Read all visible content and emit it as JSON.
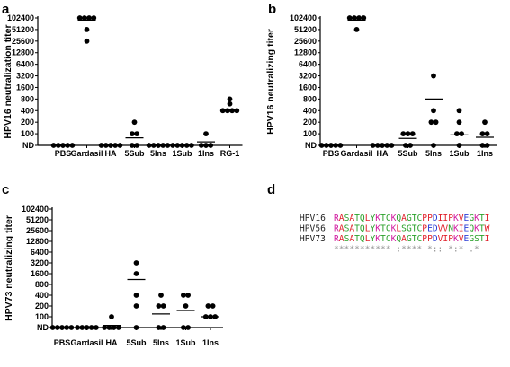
{
  "panels": {
    "a": {
      "letter": "a"
    },
    "b": {
      "letter": "b"
    },
    "c": {
      "letter": "c"
    },
    "d": {
      "letter": "d"
    }
  },
  "chart_data": [
    {
      "id": "a",
      "type": "scatter",
      "title": "",
      "ylabel": "HPV16 neutralization titer",
      "xlabel": "",
      "scale": "log2",
      "yticks": [
        "ND",
        "100",
        "200",
        "400",
        "800",
        "1600",
        "3200",
        "6400",
        "12800",
        "25600",
        "51200",
        "102400"
      ],
      "categories": [
        "PBS",
        "Gardasil",
        "HA",
        "5Sub",
        "5Ins",
        "1Sub",
        "1Ins",
        "RG-1"
      ],
      "points": [
        [
          "ND",
          "ND",
          "ND",
          "ND",
          "ND"
        ],
        [
          102400,
          102400,
          102400,
          102400,
          51200,
          25600
        ],
        [
          "ND",
          "ND",
          "ND",
          "ND",
          "ND"
        ],
        [
          "ND",
          "ND",
          100,
          100,
          200
        ],
        [
          "ND",
          "ND",
          "ND",
          "ND",
          "ND"
        ],
        [
          "ND",
          "ND",
          "ND",
          "ND",
          "ND"
        ],
        [
          "ND",
          "ND",
          "ND",
          100
        ],
        [
          400,
          400,
          400,
          400,
          600,
          800
        ]
      ],
      "means": [
        null,
        90000,
        null,
        65,
        null,
        null,
        30,
        420
      ]
    },
    {
      "id": "b",
      "type": "scatter",
      "title": "",
      "ylabel": "HPV16 neutralizing titer",
      "xlabel": "",
      "scale": "log2",
      "yticks": [
        "ND",
        "100",
        "200",
        "400",
        "800",
        "1600",
        "3200",
        "6400",
        "12800",
        "25600",
        "51200",
        "102400"
      ],
      "categories": [
        "PBS",
        "Gardasil",
        "HA",
        "5Sub",
        "5Ins",
        "1Sub",
        "1Ins"
      ],
      "points": [
        [
          "ND",
          "ND",
          "ND",
          "ND",
          "ND"
        ],
        [
          102400,
          102400,
          102400,
          102400,
          51200
        ],
        [
          "ND",
          "ND",
          "ND",
          "ND",
          "ND"
        ],
        [
          "ND",
          "ND",
          100,
          100,
          100
        ],
        [
          "ND",
          200,
          200,
          400,
          3200
        ],
        [
          "ND",
          100,
          100,
          200,
          400
        ],
        [
          "ND",
          "ND",
          100,
          100,
          200
        ]
      ],
      "means": [
        null,
        90000,
        null,
        60,
        800,
        90,
        70
      ]
    },
    {
      "id": "c",
      "type": "scatter",
      "title": "",
      "ylabel": "HPV73 neutralizing titer",
      "xlabel": "",
      "scale": "log2",
      "yticks": [
        "ND",
        "100",
        "200",
        "400",
        "800",
        "1600",
        "3200",
        "6400",
        "12800",
        "25600",
        "51200",
        "102400"
      ],
      "categories": [
        "PBS",
        "Gardasil",
        "HA",
        "5Sub",
        "5Ins",
        "1Sub",
        "1Ins"
      ],
      "points": [
        [
          "ND",
          "ND",
          "ND",
          "ND",
          "ND"
        ],
        [
          "ND",
          "ND",
          "ND",
          "ND",
          "ND"
        ],
        [
          "ND",
          "ND",
          "ND",
          "ND",
          100
        ],
        [
          "ND",
          200,
          400,
          1600,
          3200
        ],
        [
          "ND",
          "ND",
          200,
          200,
          400
        ],
        [
          "ND",
          "ND",
          200,
          400,
          400
        ],
        [
          100,
          100,
          100,
          200,
          200
        ]
      ],
      "means": [
        null,
        null,
        20,
        1100,
        120,
        150,
        100
      ]
    }
  ],
  "alignment": {
    "rows": [
      {
        "name": "HPV16",
        "seq": "RASATQLYKTCKQAGTCPPDIIPKVEGKTI"
      },
      {
        "name": "HPV56",
        "seq": "RASATQLYKTCKLSGTCPEDVVNKIEQKTW"
      },
      {
        "name": "HPV73",
        "seq": "RASATQLYKTCKQAGTCPPDVIPKVEGSTI"
      }
    ],
    "consensus": "*********** :**** *:: *:* .*",
    "colors": {
      "R": "#d11aa0",
      "K": "#d11aa0",
      "A": "#e0202a",
      "V": "#e0202a",
      "I": "#e0202a",
      "L": "#e0202a",
      "P": "#e0202a",
      "W": "#e0202a",
      "S": "#2ba12b",
      "T": "#2ba12b",
      "Q": "#2ba12b",
      "Y": "#2ba12b",
      "C": "#2ba12b",
      "G": "#2ba12b",
      "N": "#2ba12b",
      "D": "#2a3bd6",
      "E": "#2a3bd6",
      "consensus": "#999999",
      "name": "#222222"
    }
  }
}
